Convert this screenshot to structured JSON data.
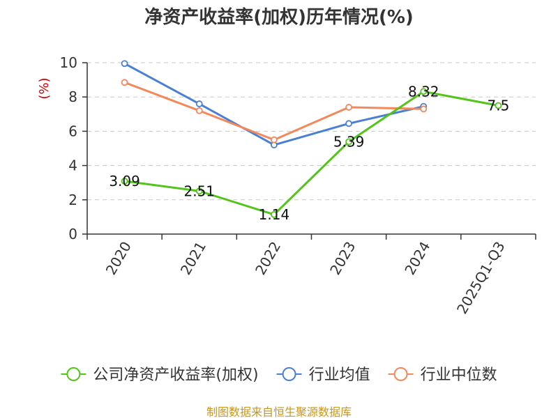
{
  "chart_data": {
    "type": "line",
    "title": "净资产收益率(加权)历年情况(%)",
    "ylabel": "(%)",
    "xlabel": "",
    "categories": [
      "2020",
      "2021",
      "2022",
      "2023",
      "2024",
      "2025Q1-Q3"
    ],
    "ylim": [
      0,
      10
    ],
    "yticks": [
      0,
      2,
      4,
      6,
      8,
      10
    ],
    "grid": true,
    "legend_position": "bottom",
    "series": [
      {
        "name": "公司净资产收益率(加权)",
        "color": "#52c41a",
        "values": [
          3.09,
          2.51,
          1.14,
          5.39,
          8.32,
          7.5
        ],
        "labels": [
          "3.09",
          "2.51",
          "1.14",
          "5.39",
          "8.32",
          "7.5"
        ]
      },
      {
        "name": "行业均值",
        "color": "#4a7fd6",
        "values": [
          9.95,
          7.6,
          5.2,
          6.45,
          7.45,
          null
        ],
        "labels": []
      },
      {
        "name": "行业中位数",
        "color": "#f4885a",
        "values": [
          8.85,
          7.2,
          5.5,
          7.4,
          7.3,
          null
        ],
        "labels": []
      }
    ]
  },
  "footer": "制图数据来自恒生聚源数据库"
}
